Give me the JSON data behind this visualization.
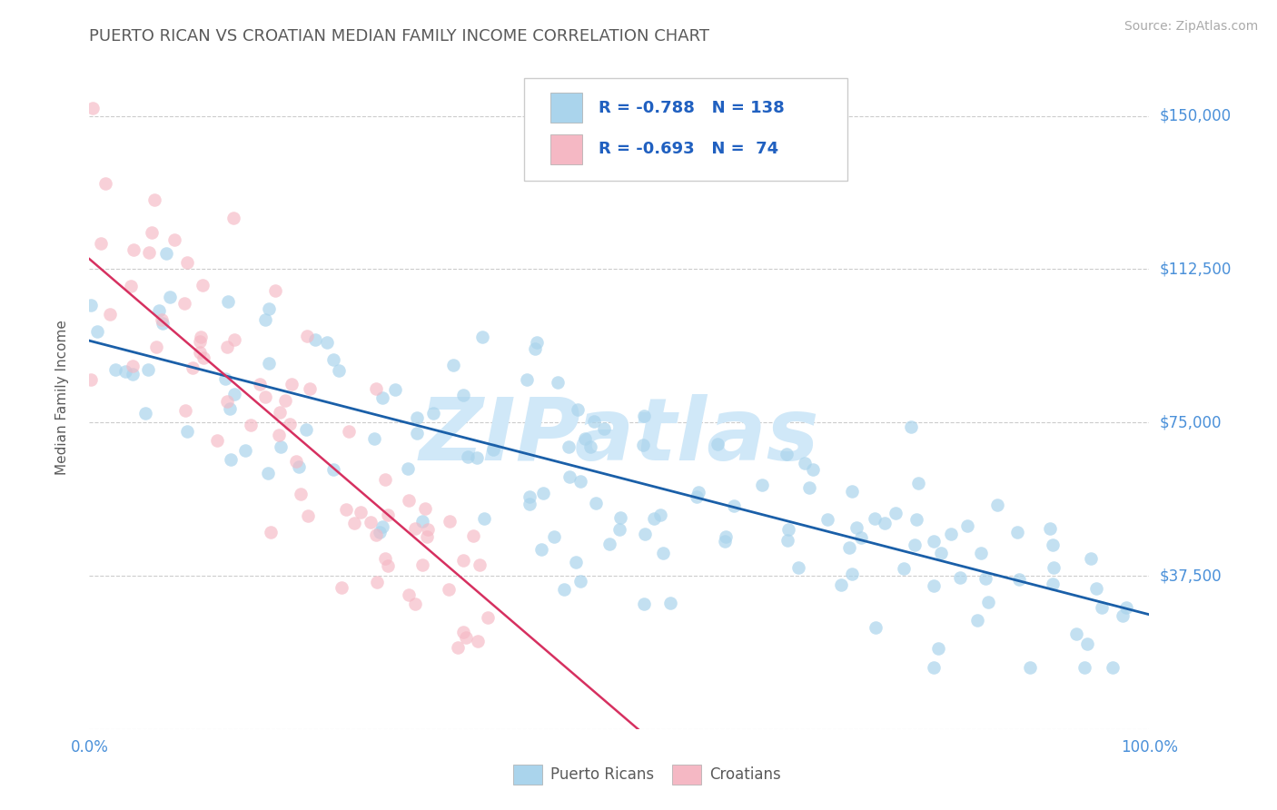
{
  "title": "PUERTO RICAN VS CROATIAN MEDIAN FAMILY INCOME CORRELATION CHART",
  "source_text": "Source: ZipAtlas.com",
  "ylabel": "Median Family Income",
  "xlim": [
    0,
    100
  ],
  "ylim": [
    0,
    162500
  ],
  "ytick_vals": [
    0,
    37500,
    75000,
    112500,
    150000
  ],
  "ytick_labels": [
    "",
    "$37,500",
    "$75,000",
    "$112,500",
    "$150,000"
  ],
  "xtick_vals": [
    0,
    100
  ],
  "xtick_labels": [
    "0.0%",
    "100.0%"
  ],
  "title_color": "#5a5a5a",
  "title_fontsize": 13,
  "axis_label_color": "#4a90d9",
  "watermark_text": "ZIPatlas",
  "watermark_color": "#d0e8f8",
  "watermark_fontsize": 70,
  "blue_color": "#7fbfdf",
  "blue_fill": "#aad4ec",
  "blue_line_color": "#1a5fa8",
  "pink_color": "#f5b8c4",
  "pink_line_color": "#d63060",
  "legend_R1": "-0.788",
  "legend_N1": "138",
  "legend_R2": "-0.693",
  "legend_N2": " 74",
  "legend_label1": "Puerto Ricans",
  "legend_label2": "Croatians",
  "blue_R": -0.788,
  "blue_N": 138,
  "pink_R": -0.693,
  "pink_N": 74,
  "grid_color": "#cccccc",
  "background_color": "#ffffff",
  "source_color": "#aaaaaa",
  "legend_text_color": "#2060c0",
  "bottom_legend_color": "#5a5a5a"
}
